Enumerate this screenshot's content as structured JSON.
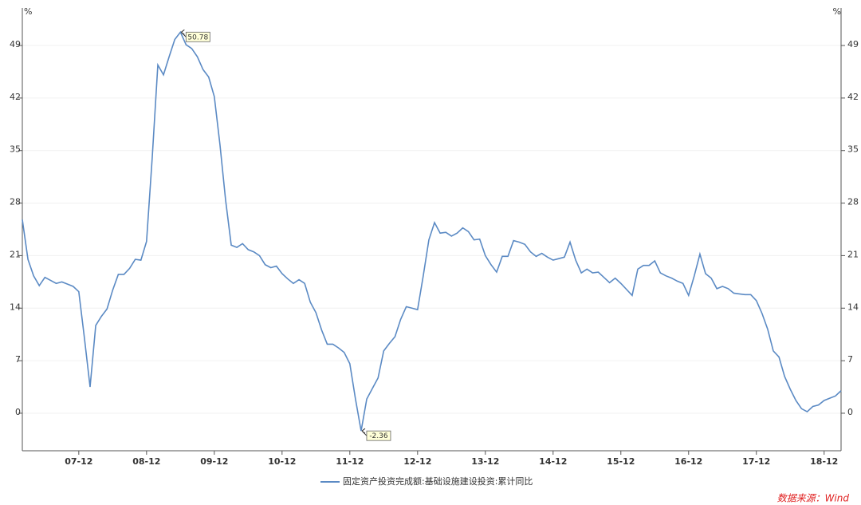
{
  "chart_data": {
    "type": "line",
    "y_unit": "%",
    "y2_unit": "%",
    "categories": [
      null,
      null,
      null,
      null,
      null,
      null,
      null,
      null,
      null,
      null,
      "07-12",
      null,
      null,
      null,
      null,
      null,
      null,
      null,
      null,
      null,
      null,
      null,
      "08-12",
      null,
      null,
      null,
      null,
      null,
      null,
      null,
      null,
      null,
      null,
      null,
      "09-12",
      null,
      null,
      null,
      null,
      null,
      null,
      null,
      null,
      null,
      null,
      null,
      "10-12",
      null,
      null,
      null,
      null,
      null,
      null,
      null,
      null,
      null,
      null,
      null,
      "11-12",
      null,
      null,
      null,
      null,
      null,
      null,
      null,
      null,
      null,
      null,
      null,
      "12-12",
      null,
      null,
      null,
      null,
      null,
      null,
      null,
      null,
      null,
      null,
      null,
      "13-12",
      null,
      null,
      null,
      null,
      null,
      null,
      null,
      null,
      null,
      null,
      null,
      "14-12",
      null,
      null,
      null,
      null,
      null,
      null,
      null,
      null,
      null,
      null,
      null,
      "15-12",
      null,
      null,
      null,
      null,
      null,
      null,
      null,
      null,
      null,
      null,
      null,
      "16-12",
      null,
      null,
      null,
      null,
      null,
      null,
      null,
      null,
      null,
      null,
      null,
      "17-12",
      null,
      null,
      null,
      null,
      null,
      null,
      null,
      null,
      null,
      null,
      null,
      "18-12",
      null,
      null,
      null
    ],
    "series": [
      {
        "name": "固定资产投资完成额:基础设施建设投资:累计同比",
        "color": "#5b8ac4",
        "values": [
          25.8,
          20.5,
          18.3,
          17.0,
          18.1,
          17.7,
          17.3,
          17.5,
          17.2,
          16.9,
          16.2,
          10.0,
          3.5,
          11.7,
          12.9,
          13.9,
          16.4,
          18.5,
          18.5,
          19.3,
          20.5,
          20.4,
          22.9,
          34.0,
          46.4,
          45.1,
          47.5,
          49.8,
          50.78,
          49.1,
          48.6,
          47.5,
          45.8,
          44.8,
          42.2,
          35.8,
          28.4,
          22.4,
          22.1,
          22.6,
          21.8,
          21.5,
          21.0,
          19.8,
          19.4,
          19.6,
          18.6,
          17.9,
          17.3,
          17.8,
          17.3,
          14.8,
          13.4,
          11.1,
          9.2,
          9.2,
          8.7,
          8.1,
          6.6,
          1.9,
          -2.36,
          1.9,
          3.3,
          4.7,
          8.3,
          9.3,
          10.2,
          12.5,
          14.2,
          14.0,
          13.8,
          18.3,
          23.1,
          25.4,
          24.0,
          24.1,
          23.6,
          24.0,
          24.7,
          24.2,
          23.1,
          23.2,
          21.0,
          19.8,
          18.8,
          20.9,
          20.9,
          23.0,
          22.8,
          22.5,
          21.5,
          20.9,
          21.3,
          20.8,
          20.4,
          20.6,
          20.8,
          22.8,
          20.4,
          18.7,
          19.2,
          18.7,
          18.8,
          18.1,
          17.4,
          18.0,
          17.3,
          16.5,
          15.7,
          19.2,
          19.7,
          19.7,
          20.3,
          18.7,
          18.3,
          18.0,
          17.6,
          17.3,
          15.7,
          18.3,
          21.2,
          18.6,
          18.0,
          16.6,
          16.9,
          16.6,
          16.0,
          15.9,
          15.8,
          15.8,
          15.0,
          13.3,
          11.2,
          8.3,
          7.5,
          4.9,
          3.2,
          1.7,
          0.6,
          0.2,
          0.9,
          1.1,
          1.7,
          2.0,
          2.3,
          3.0
        ],
        "value_labels": [
          null,
          null,
          null,
          null,
          null,
          null,
          null,
          null,
          null,
          null,
          null,
          null,
          null,
          null,
          null,
          null,
          null,
          null,
          null,
          null,
          null,
          null,
          null,
          null,
          null,
          null,
          null,
          null,
          "50.78",
          null,
          null,
          null,
          null,
          null,
          null,
          null,
          null,
          null,
          null,
          null,
          null,
          null,
          null,
          null,
          null,
          null,
          null,
          null,
          null,
          null,
          null,
          null,
          null,
          null,
          null,
          null,
          null,
          null,
          null,
          null,
          "-2.36",
          null,
          null,
          null,
          null,
          null,
          null,
          null,
          null,
          null,
          null,
          null,
          null,
          null,
          null,
          null,
          null,
          null,
          null,
          null,
          null,
          null,
          null,
          null,
          null,
          null,
          null,
          null,
          null,
          null,
          null,
          null,
          null,
          null,
          null,
          null,
          null,
          null,
          null,
          null,
          null,
          null,
          null,
          null,
          null,
          null,
          null,
          null,
          null,
          null,
          null,
          null,
          null,
          null,
          null,
          null,
          null,
          null,
          null,
          null,
          null,
          null,
          null,
          null,
          null,
          null,
          null,
          null,
          null,
          null,
          null,
          null,
          null,
          null,
          null,
          null,
          null,
          null,
          null,
          null,
          null,
          null,
          null,
          null
        ]
      }
    ],
    "ylim": [
      -5,
      54
    ],
    "yticks": [
      0,
      7,
      14,
      21,
      28,
      35,
      42,
      49
    ],
    "y2lim": [
      -5,
      54
    ],
    "y2ticks": [
      0,
      7,
      14,
      21,
      28,
      35,
      42,
      49
    ],
    "grid": true,
    "legend": "bottom",
    "source": "数据来源：Wind"
  }
}
